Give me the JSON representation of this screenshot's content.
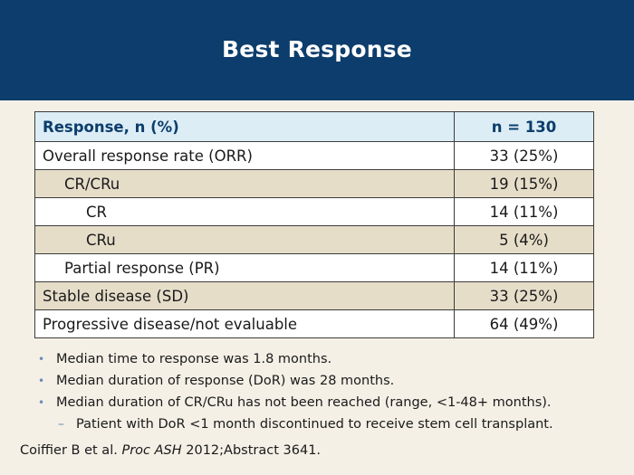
{
  "slide": {
    "title": "Best Response"
  },
  "table": {
    "headers": [
      "Response, n (%)",
      "n = 130"
    ],
    "rows": [
      {
        "label": "Overall response rate (ORR)",
        "value": "33 (25%)"
      },
      {
        "label": "CR/CRu",
        "value": "19 (15%)"
      },
      {
        "label": "CR",
        "value": "14 (11%)"
      },
      {
        "label": "CRu",
        "value": "5 (4%)"
      },
      {
        "label": "Partial response (PR)",
        "value": "14 (11%)"
      },
      {
        "label": "Stable disease (SD)",
        "value": "33 (25%)"
      },
      {
        "label": "Progressive disease/not evaluable",
        "value": "64 (49%)"
      }
    ]
  },
  "bullets": [
    "Median time to response was 1.8 months.",
    "Median duration of response (DoR) was 28 months.",
    "Median duration of CR/CRu has not been reached (range, <1-48+ months).",
    "Patient with DoR <1 month discontinued to receive stem cell transplant."
  ],
  "bullet_markers": {
    "main": "•",
    "sub": "–"
  },
  "citation": {
    "authors": "Coiffier B et al.",
    "journal": "Proc ASH",
    "rest": "2012;Abstract 3641."
  },
  "colors": {
    "header_bg": "#0c3d6c",
    "table_header_bg": "#dcedf6",
    "row_alt_bg": "#e6ddc9",
    "page_bg": "#f4f0e6"
  }
}
